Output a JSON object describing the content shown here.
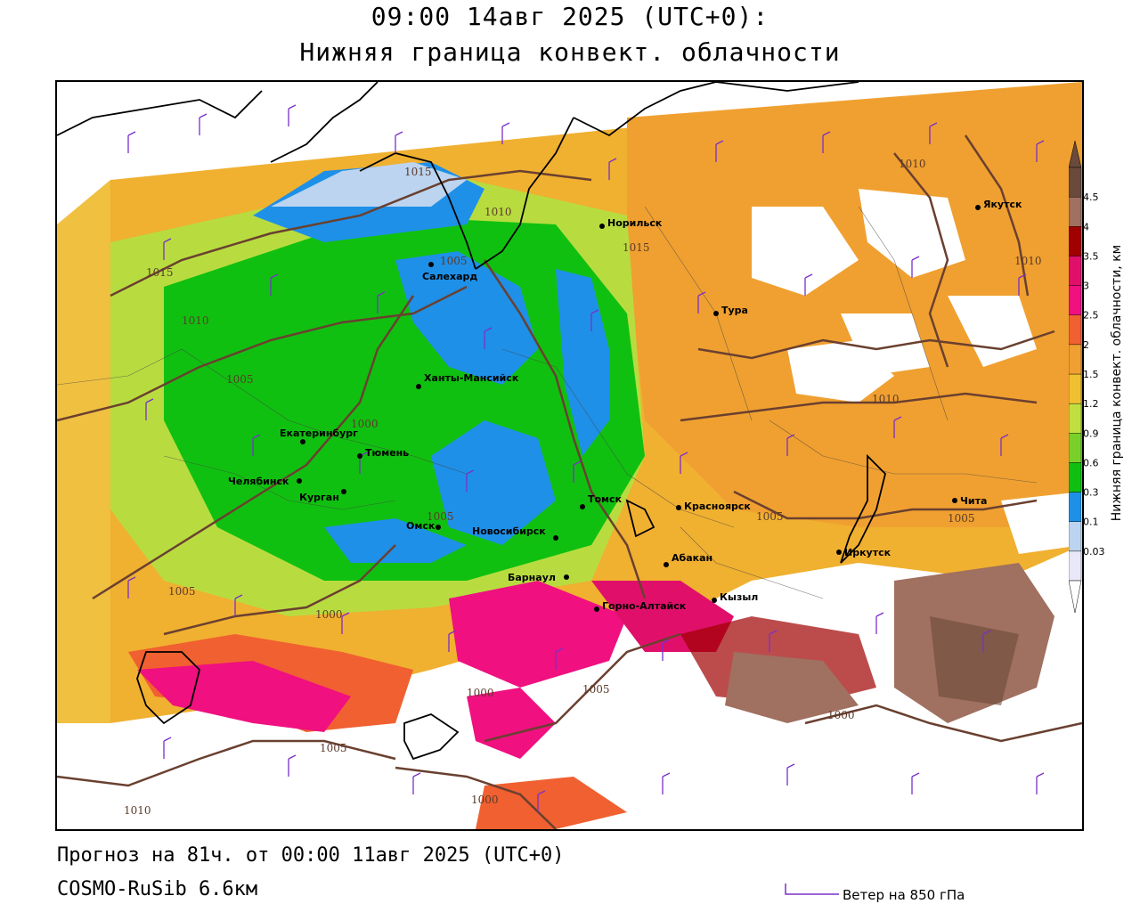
{
  "header": {
    "title_line1": "09:00 14авг 2025 (UTC+0):",
    "title_line2": "Нижняя граница конвект. облачности"
  },
  "footer": {
    "forecast": "Прогноз на 81ч. от 00:00 11авг 2025 (UTC+0)",
    "model": "COSMO-RuSib 6.6км",
    "wind_legend": "Ветер на 850 гПа"
  },
  "colorbar": {
    "title": "Нижняя граница конвект. облачности, км",
    "levels": [
      "0.03",
      "0.1",
      "0.3",
      "0.6",
      "0.9",
      "1.2",
      "1.5",
      "2",
      "2.5",
      "3",
      "3.5",
      "4",
      "4.5"
    ],
    "colors": [
      "#e8e8f8",
      "#bcd4f0",
      "#1e90e8",
      "#10c010",
      "#7ad02a",
      "#c0e040",
      "#f0c030",
      "#f0a030",
      "#f06030",
      "#f01080",
      "#e0106a",
      "#a00000",
      "#a07060",
      "#6a4a3a"
    ]
  },
  "cities": [
    {
      "name": "Салехард"
    },
    {
      "name": "Норильск"
    },
    {
      "name": "Якутск"
    },
    {
      "name": "Тура"
    },
    {
      "name": "Ханты-Мансийск"
    },
    {
      "name": "Екатеринбург"
    },
    {
      "name": "Тюмень"
    },
    {
      "name": "Челябинск"
    },
    {
      "name": "Курган"
    },
    {
      "name": "Омск"
    },
    {
      "name": "Новосибирск"
    },
    {
      "name": "Томск"
    },
    {
      "name": "Красноярск"
    },
    {
      "name": "Барнаул"
    },
    {
      "name": "Абакан"
    },
    {
      "name": "Кызыл"
    },
    {
      "name": "Горно-Алтайск"
    },
    {
      "name": "Иркутск"
    },
    {
      "name": "Чита"
    }
  ],
  "isobar_labels": [
    "1015",
    "1010",
    "1005",
    "1015",
    "1010",
    "1005",
    "1000",
    "1005",
    "1000",
    "1005",
    "1005",
    "1010",
    "1015",
    "1010",
    "1010",
    "1005",
    "1005",
    "1000",
    "1000",
    "1005",
    "1010",
    "1000"
  ]
}
